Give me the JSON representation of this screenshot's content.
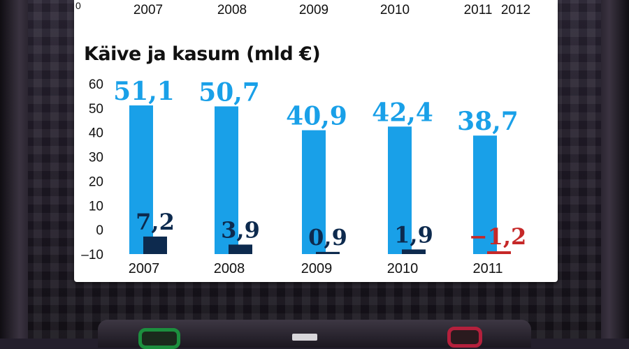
{
  "top_axis": {
    "years": [
      "2007",
      "2008",
      "2009",
      "2010",
      "2011",
      "2012"
    ]
  },
  "chart_data": {
    "type": "bar",
    "title": "Käive ja kasum (mld €)",
    "categories": [
      "2007",
      "2008",
      "2009",
      "2010",
      "2011"
    ],
    "series": [
      {
        "values": [
          51.1,
          50.7,
          40.9,
          42.4,
          38.7
        ],
        "labels": [
          "51,1",
          "50,7",
          "40,9",
          "42,4",
          "38,7"
        ],
        "color": "#19a0e8"
      },
      {
        "values": [
          7.2,
          3.9,
          0.9,
          1.9,
          -1.2
        ],
        "labels": [
          "7,2",
          "3,9",
          "0,9",
          "1,9",
          "−1,2"
        ],
        "color": "#0d2a4e",
        "negative_color": "#c62828"
      }
    ],
    "ylim": [
      -10,
      60
    ],
    "yticks": [
      "60",
      "50",
      "40",
      "30",
      "20",
      "10",
      "0",
      "–10"
    ],
    "ytick_values": [
      60,
      50,
      40,
      30,
      20,
      10,
      0,
      -10
    ],
    "grid": false,
    "xlabel": "",
    "ylabel": ""
  }
}
